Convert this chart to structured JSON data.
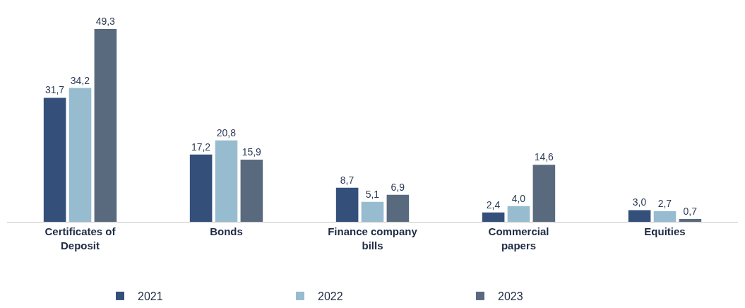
{
  "chart_data": {
    "type": "bar",
    "categories": [
      "Certificates of Deposit",
      "Bonds",
      "Finance company bills",
      "Commercial papers",
      "Equities"
    ],
    "series": [
      {
        "name": "2021",
        "color": "#34507a",
        "values": [
          31.7,
          17.2,
          8.7,
          2.4,
          3.0
        ],
        "value_labels": [
          "31,7",
          "17,2",
          "8,7",
          "2,4",
          "3,0"
        ]
      },
      {
        "name": "2022",
        "color": "#97bcd0",
        "values": [
          34.2,
          20.8,
          5.1,
          4.0,
          2.7
        ],
        "value_labels": [
          "34,2",
          "20,8",
          "5,1",
          "4,0",
          "2,7"
        ]
      },
      {
        "name": "2023",
        "color": "#5a6a7e",
        "values": [
          49.3,
          15.9,
          6.9,
          14.6,
          0.7
        ],
        "value_labels": [
          "49,3",
          "15,9",
          "6,9",
          "14,6",
          "0,7"
        ]
      }
    ],
    "legend": "bottom",
    "grid": false
  }
}
